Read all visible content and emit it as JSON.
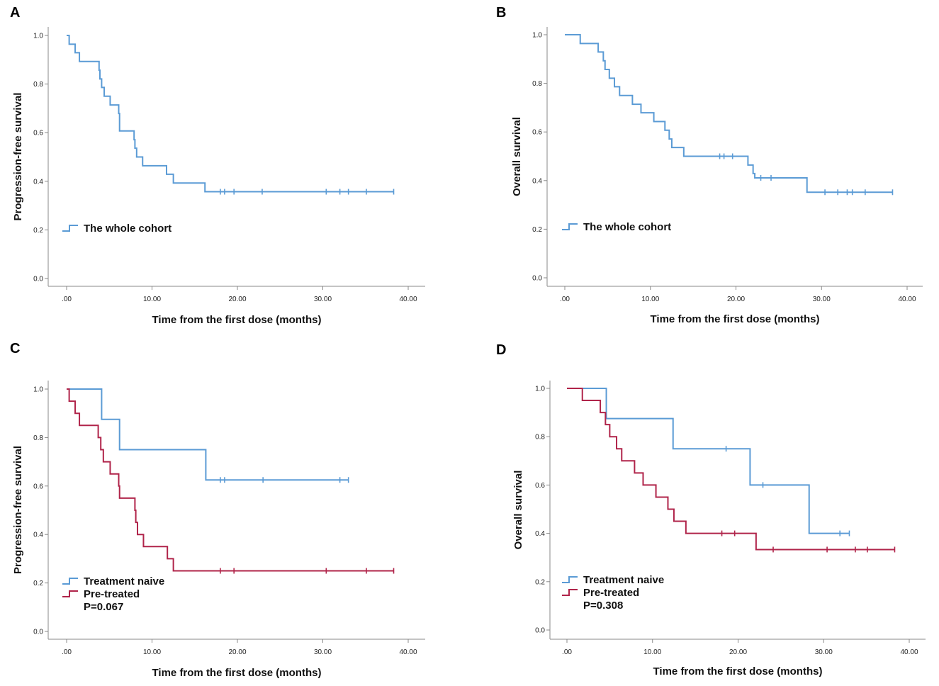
{
  "chart_data": [
    {
      "panel": "A",
      "type": "line",
      "subtype": "kaplan-meier",
      "xlabel": "Time from the first dose (months)",
      "ylabel": "Progression-free survival",
      "xlim": [
        0,
        40
      ],
      "ylim": [
        0,
        1
      ],
      "xticks": [
        ".00",
        "10.00",
        "20.00",
        "30.00",
        "40.00"
      ],
      "yticks": [
        "0.0",
        "0.2",
        "0.4",
        "0.6",
        "0.8",
        "1.0"
      ],
      "legend_position": "lower-left",
      "pvalue": "",
      "series": [
        {
          "name": "The whole cohort",
          "color": "#5B9BD5",
          "steps": [
            [
              0,
              1.0
            ],
            [
              0.3,
              0.964
            ],
            [
              1.0,
              0.929
            ],
            [
              1.5,
              0.893
            ],
            [
              3.8,
              0.857
            ],
            [
              3.9,
              0.821
            ],
            [
              4.1,
              0.786
            ],
            [
              4.4,
              0.75
            ],
            [
              5.1,
              0.714
            ],
            [
              6.1,
              0.679
            ],
            [
              6.2,
              0.607
            ],
            [
              7.9,
              0.571
            ],
            [
              8.0,
              0.536
            ],
            [
              8.2,
              0.5
            ],
            [
              8.9,
              0.464
            ],
            [
              11.7,
              0.429
            ],
            [
              12.5,
              0.393
            ],
            [
              16.2,
              0.357
            ]
          ],
          "end": 38.3,
          "censors": [
            18.0,
            18.5,
            19.6,
            22.9,
            30.4,
            32.0,
            33.0,
            35.1,
            38.3
          ]
        }
      ]
    },
    {
      "panel": "B",
      "type": "line",
      "subtype": "kaplan-meier",
      "xlabel": "Time from the first dose (months)",
      "ylabel": "Overall survival",
      "xlim": [
        0,
        40
      ],
      "ylim": [
        0,
        1
      ],
      "xticks": [
        ".00",
        "10.00",
        "20.00",
        "30.00",
        "40.00"
      ],
      "yticks": [
        "0.0",
        "0.2",
        "0.4",
        "0.6",
        "0.8",
        "1.0"
      ],
      "legend_position": "lower-left",
      "pvalue": "",
      "series": [
        {
          "name": "The whole cohort",
          "color": "#5B9BD5",
          "steps": [
            [
              0,
              1.0
            ],
            [
              1.8,
              0.964
            ],
            [
              3.9,
              0.929
            ],
            [
              4.5,
              0.893
            ],
            [
              4.7,
              0.857
            ],
            [
              5.2,
              0.821
            ],
            [
              5.8,
              0.786
            ],
            [
              6.4,
              0.75
            ],
            [
              7.9,
              0.714
            ],
            [
              8.9,
              0.679
            ],
            [
              10.4,
              0.643
            ],
            [
              11.7,
              0.607
            ],
            [
              12.2,
              0.571
            ],
            [
              12.5,
              0.536
            ],
            [
              13.9,
              0.5
            ],
            [
              21.4,
              0.464
            ],
            [
              22.0,
              0.429
            ],
            [
              22.2,
              0.411
            ],
            [
              28.3,
              0.352
            ]
          ],
          "end": 38.3,
          "censors": [
            18.1,
            18.6,
            19.6,
            22.9,
            24.1,
            30.4,
            31.9,
            33.0,
            33.6,
            35.1,
            38.3
          ]
        }
      ]
    },
    {
      "panel": "C",
      "type": "line",
      "subtype": "kaplan-meier",
      "xlabel": "Time from the first dose (months)",
      "ylabel": "Progression-free survival",
      "xlim": [
        0,
        40
      ],
      "ylim": [
        0,
        1
      ],
      "xticks": [
        ".00",
        "10.00",
        "20.00",
        "30.00",
        "40.00"
      ],
      "yticks": [
        "0.0",
        "0.2",
        "0.4",
        "0.6",
        "0.8",
        "1.0"
      ],
      "legend_position": "lower-left",
      "pvalue": "P=0.067",
      "series": [
        {
          "name": "Treatment naive",
          "color": "#5B9BD5",
          "steps": [
            [
              0,
              1.0
            ],
            [
              4.1,
              0.875
            ],
            [
              6.2,
              0.75
            ],
            [
              16.3,
              0.625
            ]
          ],
          "end": 33.0,
          "censors": [
            18.0,
            18.5,
            23.0,
            32.0,
            33.0
          ]
        },
        {
          "name": "Pre-treated",
          "color": "#B0244A",
          "steps": [
            [
              0,
              1.0
            ],
            [
              0.3,
              0.95
            ],
            [
              1.0,
              0.9
            ],
            [
              1.5,
              0.85
            ],
            [
              3.7,
              0.8
            ],
            [
              4.0,
              0.75
            ],
            [
              4.3,
              0.7
            ],
            [
              5.1,
              0.65
            ],
            [
              6.1,
              0.6
            ],
            [
              6.2,
              0.55
            ],
            [
              8.0,
              0.5
            ],
            [
              8.1,
              0.45
            ],
            [
              8.3,
              0.4
            ],
            [
              9.0,
              0.35
            ],
            [
              11.8,
              0.3
            ],
            [
              12.5,
              0.25
            ]
          ],
          "end": 38.3,
          "censors": [
            18.0,
            19.6,
            30.4,
            35.1,
            38.3
          ]
        }
      ]
    },
    {
      "panel": "D",
      "type": "line",
      "subtype": "kaplan-meier",
      "xlabel": "Time from the first dose (months)",
      "ylabel": "Overall survival",
      "xlim": [
        0,
        40
      ],
      "ylim": [
        0,
        1
      ],
      "xticks": [
        ".00",
        "10.00",
        "20.00",
        "30.00",
        "40.00"
      ],
      "yticks": [
        "0.0",
        "0.2",
        "0.4",
        "0.6",
        "0.8",
        "1.0"
      ],
      "legend_position": "lower-left",
      "pvalue": "P=0.308",
      "series": [
        {
          "name": "Treatment naive",
          "color": "#5B9BD5",
          "steps": [
            [
              0,
              1.0
            ],
            [
              4.6,
              0.875
            ],
            [
              12.4,
              0.75
            ],
            [
              21.4,
              0.6
            ],
            [
              28.3,
              0.4
            ]
          ],
          "end": 33.0,
          "censors": [
            18.6,
            22.9,
            31.9,
            33.0
          ]
        },
        {
          "name": "Pre-treated",
          "color": "#B0244A",
          "steps": [
            [
              0,
              1.0
            ],
            [
              1.8,
              0.95
            ],
            [
              3.9,
              0.9
            ],
            [
              4.5,
              0.85
            ],
            [
              5.0,
              0.8
            ],
            [
              5.8,
              0.75
            ],
            [
              6.4,
              0.7
            ],
            [
              7.9,
              0.65
            ],
            [
              8.9,
              0.6
            ],
            [
              10.4,
              0.55
            ],
            [
              11.8,
              0.5
            ],
            [
              12.5,
              0.45
            ],
            [
              13.9,
              0.4
            ],
            [
              22.1,
              0.333
            ]
          ],
          "end": 38.3,
          "censors": [
            18.1,
            19.6,
            24.1,
            30.4,
            33.7,
            35.1,
            38.3
          ]
        }
      ]
    }
  ]
}
